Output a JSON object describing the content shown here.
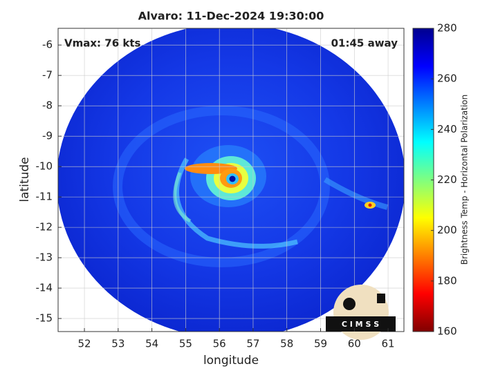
{
  "chart_data": {
    "type": "image",
    "title": "Alvaro: 11-Dec-2024 19:30:00",
    "xlabel": "longitude",
    "ylabel": "latitude",
    "annotations": [
      "Vmax: 76 kts",
      "01:45 away"
    ],
    "xlim": [
      51.22,
      61.47
    ],
    "ylim": [
      -15.43,
      -5.45
    ],
    "xticks": [
      52,
      53,
      54,
      55,
      56,
      57,
      58,
      59,
      60,
      61
    ],
    "yticks": [
      -6,
      -7,
      -8,
      -9,
      -10,
      -11,
      -12,
      -13,
      -14,
      -15
    ],
    "grid": true,
    "colorbar": {
      "label": "Brightness Temp - Horizontal Polarization",
      "colormap": "jet",
      "clim": [
        160,
        280
      ],
      "ticks": [
        160,
        180,
        200,
        220,
        240,
        260,
        280
      ]
    },
    "logo": "C I M S S"
  }
}
